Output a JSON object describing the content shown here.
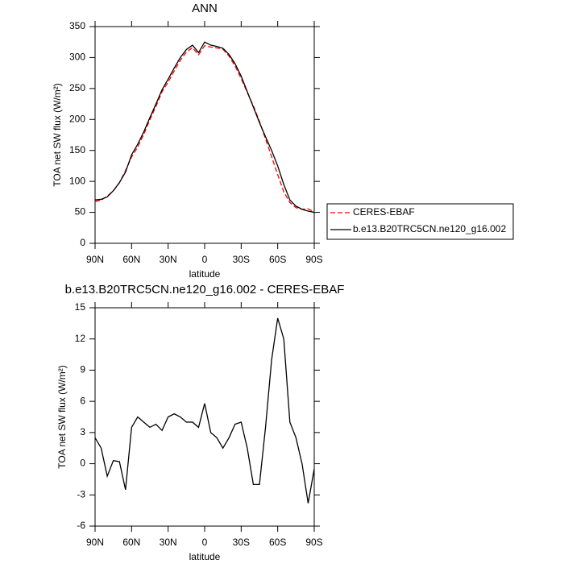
{
  "chart_data": [
    {
      "type": "line",
      "title": "ANN",
      "xlabel": "latitude",
      "ylabel": "TOA net SW flux (W/m²)",
      "x": [
        90,
        85,
        80,
        75,
        70,
        65,
        60,
        55,
        50,
        45,
        40,
        35,
        30,
        25,
        20,
        15,
        10,
        5,
        0,
        -5,
        -10,
        -15,
        -20,
        -25,
        -30,
        -35,
        -40,
        -45,
        -50,
        -55,
        -60,
        -65,
        -70,
        -75,
        -80,
        -85,
        -90
      ],
      "xlim": [
        90,
        -90
      ],
      "xticks": [
        {
          "value": 90,
          "label": "90N"
        },
        {
          "value": 60,
          "label": "60N"
        },
        {
          "value": 30,
          "label": "30N"
        },
        0,
        {
          "value": -30,
          "label": "30S"
        },
        {
          "value": -60,
          "label": "60S"
        },
        {
          "value": -90,
          "label": "90S"
        }
      ],
      "ylim": [
        0,
        350
      ],
      "yticks": [
        0,
        50,
        100,
        150,
        200,
        250,
        300,
        350
      ],
      "legend": "right",
      "series": [
        {
          "name": "CERES-EBAF",
          "color": "#ff0000",
          "style": "dashed",
          "values": [
            67.5,
            69.5,
            76.2,
            84.7,
            97.8,
            117.5,
            139.5,
            155.5,
            176,
            199.5,
            221.2,
            244.8,
            260.5,
            278.2,
            295.5,
            309,
            316,
            304.5,
            319.2,
            317,
            315.5,
            313.5,
            302.5,
            286.2,
            266,
            243.5,
            222,
            197,
            168.5,
            140,
            111,
            83,
            66,
            57.5,
            55,
            55.8,
            50.5
          ]
        },
        {
          "name": "b.e13.B20TRC5CN.ne120_g16.002",
          "color": "#000000",
          "style": "solid",
          "values": [
            70,
            71,
            75,
            85,
            98,
            115,
            143,
            160,
            180,
            203,
            225,
            248,
            265,
            283,
            300,
            313,
            320,
            308,
            325,
            320,
            318,
            315,
            305,
            290,
            270,
            245,
            220,
            195,
            172,
            150,
            125,
            95,
            70,
            60,
            55,
            52,
            50
          ]
        }
      ]
    },
    {
      "type": "line",
      "title": "b.e13.B20TRC5CN.ne120_g16.002 - CERES-EBAF",
      "xlabel": "latitude",
      "ylabel": "TOA net SW flux (W/m²)",
      "x": [
        90,
        85,
        80,
        75,
        70,
        65,
        60,
        55,
        50,
        45,
        40,
        35,
        30,
        25,
        20,
        15,
        10,
        5,
        0,
        -5,
        -10,
        -15,
        -20,
        -25,
        -30,
        -35,
        -40,
        -45,
        -50,
        -55,
        -60,
        -65,
        -70,
        -75,
        -80,
        -85,
        -90
      ],
      "xlim": [
        90,
        -90
      ],
      "xticks": [
        {
          "value": 90,
          "label": "90N"
        },
        {
          "value": 60,
          "label": "60N"
        },
        {
          "value": 30,
          "label": "30N"
        },
        0,
        {
          "value": -30,
          "label": "30S"
        },
        {
          "value": -60,
          "label": "60S"
        },
        {
          "value": -90,
          "label": "90S"
        }
      ],
      "ylim": [
        -6,
        15
      ],
      "yticks": [
        -6,
        -3,
        0,
        3,
        6,
        9,
        12,
        15
      ],
      "color": "#000000",
      "values": [
        2.5,
        1.5,
        -1.2,
        0.3,
        0.2,
        -2.5,
        3.5,
        4.5,
        4,
        3.5,
        3.8,
        3.2,
        4.5,
        4.8,
        4.5,
        4,
        4,
        3.5,
        5.8,
        3,
        2.5,
        1.5,
        2.5,
        3.8,
        4,
        1.5,
        -2,
        -2,
        3.5,
        10,
        14,
        12,
        4,
        2.5,
        0,
        -3.8,
        -0.5
      ]
    }
  ]
}
